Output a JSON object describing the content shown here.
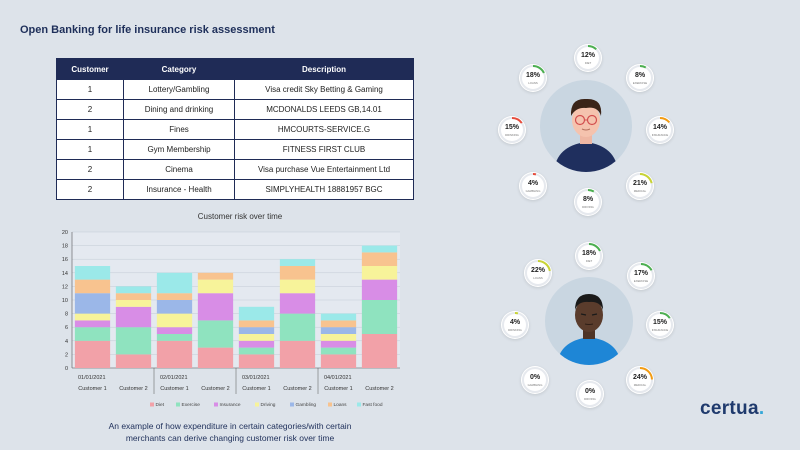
{
  "title": "Open Banking for life insurance risk assessment",
  "table": {
    "headers": [
      "Customer",
      "Category",
      "Description"
    ],
    "rows": [
      [
        "1",
        "Lottery/Gambling",
        "Visa credit Sky Betting & Gaming"
      ],
      [
        "2",
        "Dining and drinking",
        "MCDONALDS  LEEDS GB,14.01"
      ],
      [
        "1",
        "Fines",
        "HMCOURTS-SERVICE.G"
      ],
      [
        "1",
        "Gym Membership",
        "FITNESS FIRST CLUB"
      ],
      [
        "2",
        "Cinema",
        "Visa purchase Vue Entertainment Ltd"
      ],
      [
        "2",
        "Insurance - Health",
        "SIMPLYHEALTH  18881957 BGC"
      ]
    ]
  },
  "chart_data": {
    "type": "bar",
    "stacked": true,
    "title": "Customer risk over time",
    "dates": [
      "01/01/2021",
      "02/01/2021",
      "03/01/2021",
      "04/01/2021"
    ],
    "categories": [
      "Customer 1",
      "Customer 2",
      "Customer 1",
      "Customer 2",
      "Customer 1",
      "Customer 2",
      "Customer 1",
      "Customer 2"
    ],
    "ylim": [
      0,
      20
    ],
    "yticks": [
      0,
      2,
      4,
      6,
      8,
      10,
      12,
      14,
      16,
      18,
      20
    ],
    "grid": true,
    "legend_position": "bottom",
    "series": [
      {
        "name": "Diet",
        "color": "#f2a1a8",
        "values": [
          4,
          2,
          4,
          3,
          2,
          4,
          2,
          5
        ]
      },
      {
        "name": "Exercise",
        "color": "#8fe3bf",
        "values": [
          2,
          4,
          1,
          4,
          1,
          4,
          1,
          5
        ]
      },
      {
        "name": "Insurance",
        "color": "#d88de6",
        "values": [
          1,
          3,
          1,
          4,
          1,
          3,
          1,
          3
        ]
      },
      {
        "name": "Driving",
        "color": "#f7f39a",
        "values": [
          1,
          1,
          2,
          2,
          1,
          2,
          1,
          2
        ]
      },
      {
        "name": "Gambling",
        "color": "#9bb7e8",
        "values": [
          3,
          0,
          2,
          0,
          1,
          0,
          1,
          0
        ]
      },
      {
        "name": "Loans",
        "color": "#f8c38f",
        "values": [
          2,
          1,
          1,
          1,
          1,
          2,
          1,
          2
        ]
      },
      {
        "name": "Fast food",
        "color": "#9be9e9",
        "values": [
          2,
          1,
          3,
          0,
          2,
          1,
          1,
          1
        ]
      }
    ]
  },
  "caption": [
    "An example of how expenditure in certain categories/with certain",
    "merchants can derive changing customer risk over time"
  ],
  "logo": {
    "text": "certua",
    "dot": "."
  },
  "customer1": {
    "gauges": [
      {
        "value": "12%",
        "fraction": 0.12,
        "label": "DIET",
        "color": "#4caf50"
      },
      {
        "value": "8%",
        "fraction": 0.08,
        "label": "EXERCISE",
        "color": "#4caf50"
      },
      {
        "value": "14%",
        "fraction": 0.14,
        "label": "INSURANCE",
        "color": "#f39c12"
      },
      {
        "value": "21%",
        "fraction": 0.21,
        "label": "MEDICAL",
        "color": "#c8d335"
      },
      {
        "value": "8%",
        "fraction": 0.08,
        "label": "DRIVING",
        "color": "#4caf50"
      },
      {
        "value": "4%",
        "fraction": 0.04,
        "label": "GAMBLING",
        "color": "#e74c3c"
      },
      {
        "value": "15%",
        "fraction": 0.15,
        "label": "DRINKING",
        "color": "#e74c3c"
      },
      {
        "value": "18%",
        "fraction": 0.18,
        "label": "LOANS",
        "color": "#4caf50"
      }
    ]
  },
  "customer2": {
    "gauges": [
      {
        "value": "18%",
        "fraction": 0.18,
        "label": "DIET",
        "color": "#4caf50"
      },
      {
        "value": "17%",
        "fraction": 0.17,
        "label": "EXERCISE",
        "color": "#4caf50"
      },
      {
        "value": "15%",
        "fraction": 0.15,
        "label": "INSURANCE",
        "color": "#4caf50"
      },
      {
        "value": "24%",
        "fraction": 0.24,
        "label": "MEDICAL",
        "color": "#f39c12"
      },
      {
        "value": "0%",
        "fraction": 0,
        "label": "DRIVING",
        "color": "#4caf50"
      },
      {
        "value": "0%",
        "fraction": 0,
        "label": "GAMBLING",
        "color": "#4caf50"
      },
      {
        "value": "4%",
        "fraction": 0.04,
        "label": "DRINKING",
        "color": "#c8d335"
      },
      {
        "value": "22%",
        "fraction": 0.22,
        "label": "LOANS",
        "color": "#c8d335"
      }
    ]
  }
}
